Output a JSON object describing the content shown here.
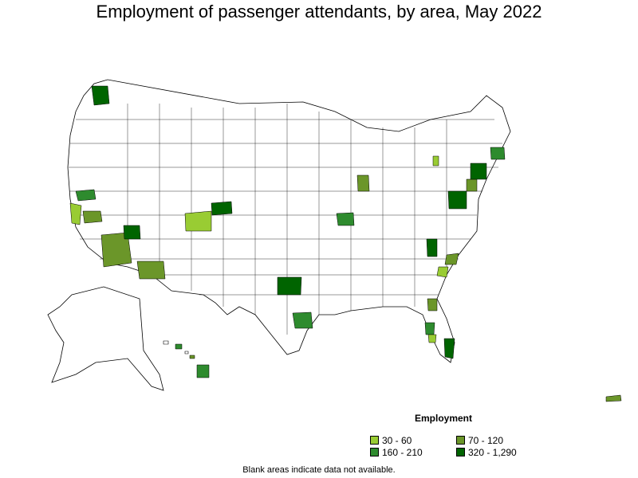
{
  "title": "Employment of passenger attendants, by area, May 2022",
  "legend": {
    "title": "Employment",
    "items": [
      {
        "label": "30 - 60",
        "color": "#99cc33"
      },
      {
        "label": "70 - 120",
        "color": "#6b9629"
      },
      {
        "label": "160 - 210",
        "color": "#2e8b2e"
      },
      {
        "label": "320 - 1,290",
        "color": "#006400"
      }
    ]
  },
  "note": "Blank areas indicate data not available.",
  "colors": {
    "empty": "#ffffff",
    "border": "#000000"
  }
}
